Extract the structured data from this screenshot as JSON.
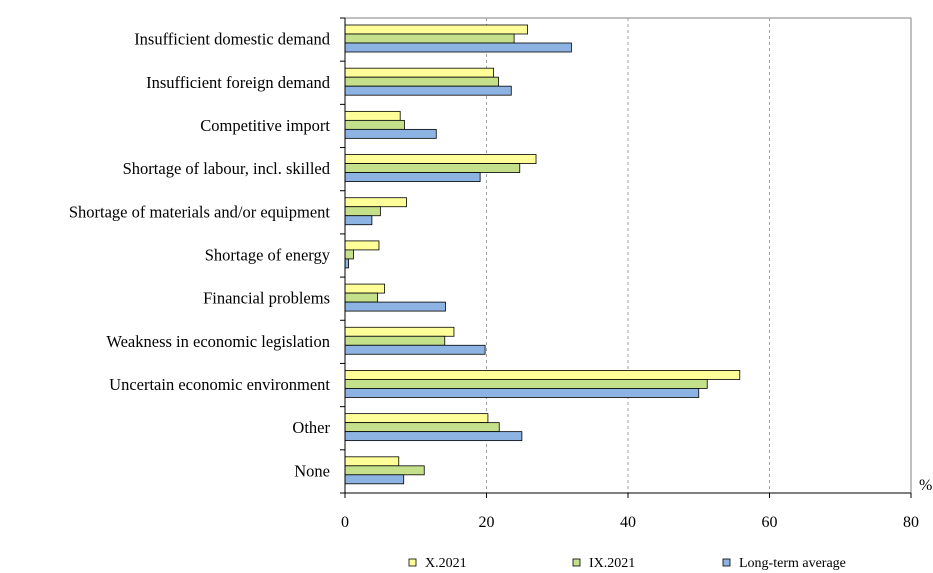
{
  "chart_data": {
    "type": "bar",
    "orientation": "horizontal",
    "categories": [
      "Insufficient domestic demand",
      "Insufficient foreign demand",
      "Competitive import",
      "Shortage of labour, incl. skilled",
      "Shortage of materials and/or equipment",
      "Shortage of energy",
      "Financial problems",
      "Weakness in economic legislation",
      "Uncertain economic environment",
      "Other",
      "None"
    ],
    "series": [
      {
        "name": "X.2021",
        "color": "#ffff99",
        "values": [
          25.8,
          21.0,
          7.8,
          27.0,
          8.7,
          4.8,
          5.6,
          15.4,
          55.8,
          20.2,
          7.6
        ]
      },
      {
        "name": "IX.2021",
        "color": "#c4e08a",
        "values": [
          23.9,
          21.7,
          8.4,
          24.7,
          5.0,
          1.2,
          4.6,
          14.1,
          51.2,
          21.8,
          11.2
        ]
      },
      {
        "name": "Long-term average",
        "color": "#8db3e2",
        "values": [
          32.0,
          23.5,
          12.9,
          19.1,
          3.8,
          0.5,
          14.2,
          19.8,
          50.0,
          25.0,
          8.3
        ]
      }
    ],
    "xlim": [
      0,
      80
    ],
    "xticks": [
      "0",
      "20",
      "40",
      "60",
      "80"
    ],
    "unit": "%",
    "grid": "vertical dashed",
    "legend": "bottom"
  }
}
